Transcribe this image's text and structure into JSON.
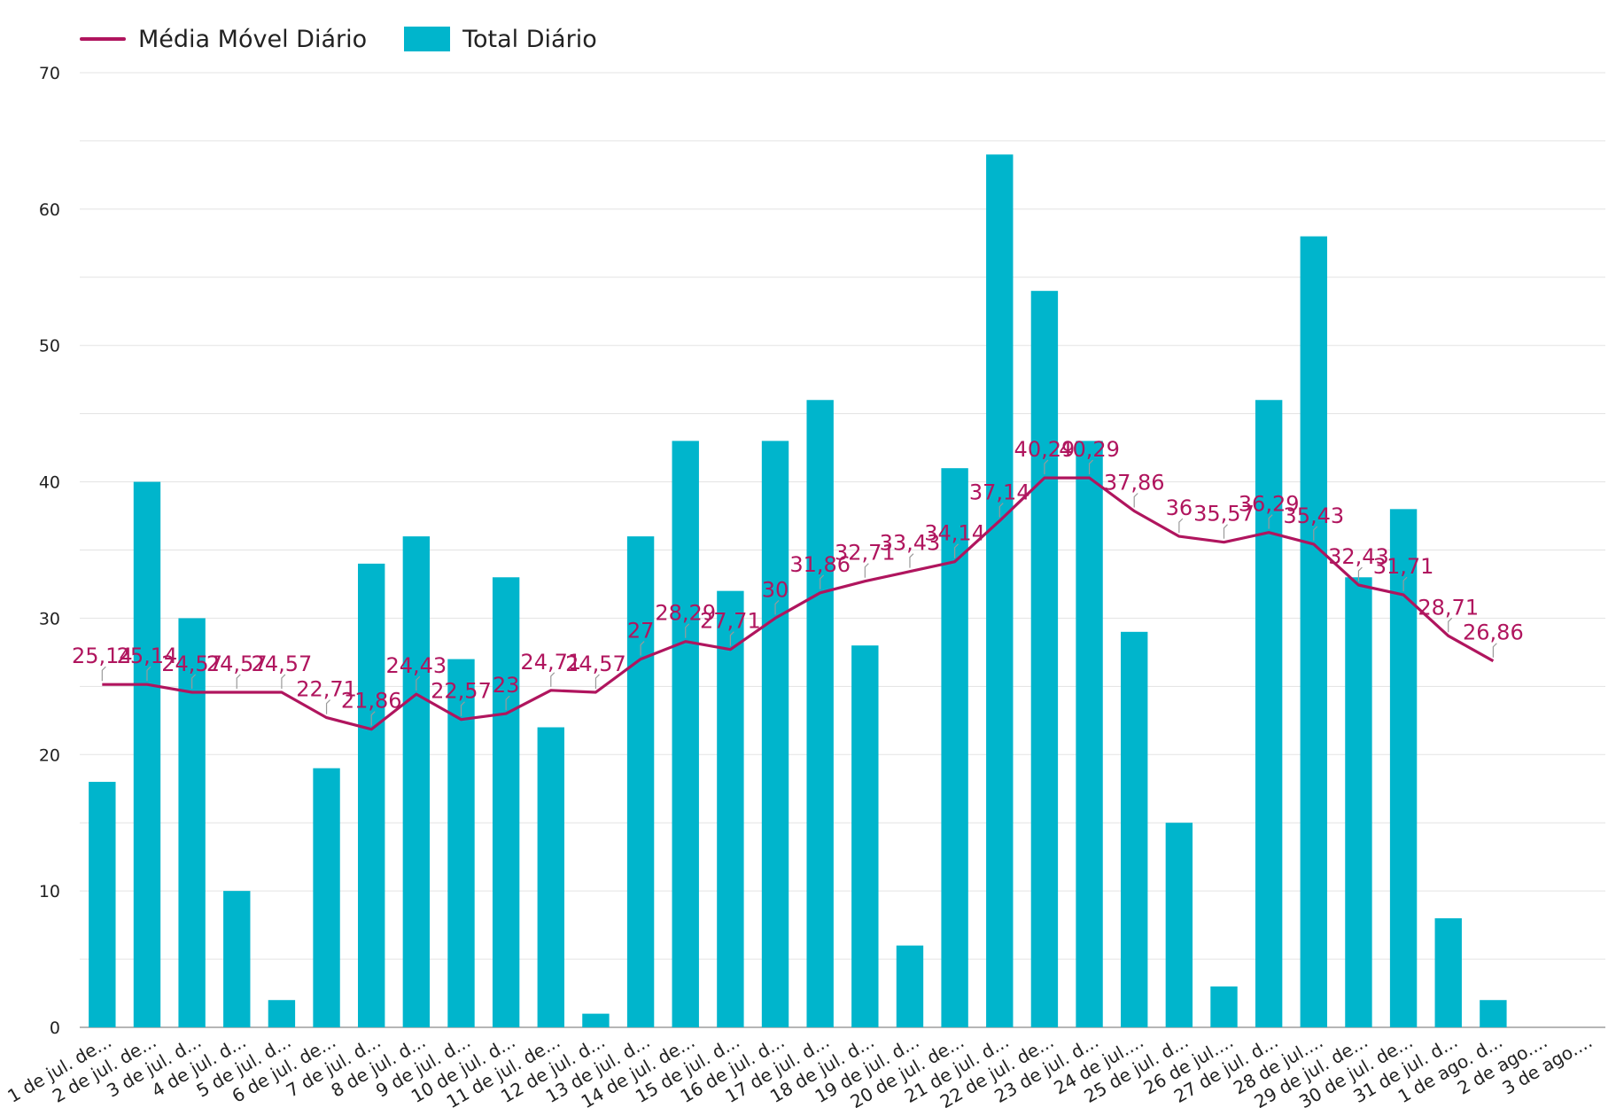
{
  "chart_data": {
    "type": "bar",
    "categories": [
      "1 de jul. de...",
      "2 de jul. de...",
      "3 de jul. d...",
      "4 de jul. d...",
      "5 de jul. d...",
      "6 de jul. de...",
      "7 de jul. d...",
      "8 de jul. d...",
      "9 de jul. d...",
      "10 de jul. d...",
      "11 de jul. de...",
      "12 de jul. d...",
      "13 de jul. d...",
      "14 de jul. de...",
      "15 de jul. d...",
      "16 de jul. d...",
      "17 de jul. d...",
      "18 de jul. d...",
      "19 de jul. d...",
      "20 de jul. de...",
      "21 de jul. d...",
      "22 de jul. de...",
      "23 de jul. d...",
      "24 de jul....",
      "25 de jul. d...",
      "26 de jul....",
      "27 de jul. d...",
      "28 de jul....",
      "29 de jul. de...",
      "30 de jul. de...",
      "31 de jul. d...",
      "1 de ago. d...",
      "2 de ago....",
      "3 de ago...."
    ],
    "series": [
      {
        "name": "Total Diário",
        "type": "bar",
        "color": "#00b5cc",
        "values": [
          18,
          40,
          30,
          10,
          2,
          19,
          34,
          36,
          27,
          33,
          22,
          1,
          36,
          43,
          32,
          43,
          46,
          28,
          6,
          41,
          64,
          54,
          43,
          29,
          15,
          3,
          46,
          58,
          33,
          38,
          8,
          2,
          null,
          null
        ]
      },
      {
        "name": "Média Móvel Diário",
        "type": "line",
        "color": "#b0155e",
        "values": [
          25.14,
          25.14,
          24.57,
          24.57,
          24.57,
          22.71,
          21.86,
          24.43,
          22.57,
          23,
          24.71,
          24.57,
          27,
          28.29,
          27.71,
          30,
          31.86,
          32.71,
          33.43,
          34.14,
          37.14,
          40.29,
          40.29,
          37.86,
          36,
          35.57,
          36.29,
          35.43,
          32.43,
          31.71,
          28.71,
          26.86,
          null,
          null
        ],
        "labels": [
          "25,14",
          "25,14",
          "24,57",
          "24,57",
          "24,57",
          "22,71",
          "21,86",
          "24,43",
          "22,57",
          "23",
          "24,71",
          "24,57",
          "27",
          "28,29",
          "27,71",
          "30",
          "31,86",
          "32,71",
          "33,43",
          "34,14",
          "37,14",
          "40,29",
          "40,29",
          "37,86",
          "36",
          "35,57",
          "36,29",
          "35,43",
          "32,43",
          "31,71",
          "28,71",
          "26,86",
          "",
          ""
        ]
      }
    ],
    "yticks": [
      "0",
      "10",
      "20",
      "30",
      "40",
      "50",
      "60",
      "70"
    ],
    "ylim": [
      0,
      70
    ],
    "grid": true,
    "legend_position": "top-left",
    "title": "",
    "xlabel": "",
    "ylabel": ""
  }
}
